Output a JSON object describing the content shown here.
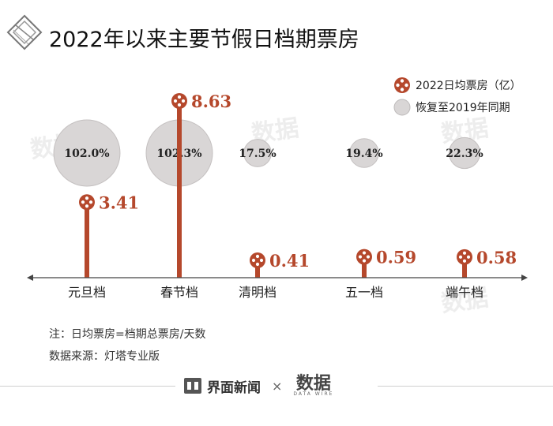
{
  "title": "2022年以来主要节假日档期票房",
  "legend": {
    "daily_label": "2022日均票房（亿）",
    "recovery_label": "恢复至2019年同期"
  },
  "colors": {
    "accent": "#b5482c",
    "bubble": "#d9d6d6",
    "axis": "#444444"
  },
  "chart_data": {
    "type": "scatter",
    "categories": [
      "元旦档",
      "春节档",
      "清明档",
      "五一档",
      "端午档"
    ],
    "series": [
      {
        "name": "2022日均票房（亿）",
        "values": [
          3.41,
          8.63,
          0.41,
          0.59,
          0.58
        ],
        "labels": [
          "3.41",
          "8.63",
          "0.41",
          "0.59",
          "0.58"
        ]
      },
      {
        "name": "恢复至2019年同期",
        "values": [
          102.0,
          102.3,
          17.5,
          19.4,
          22.3
        ],
        "labels": [
          "102.0%",
          "102.3%",
          "17.5%",
          "19.4%",
          "22.3%"
        ]
      }
    ]
  },
  "notes": {
    "note1": "注：日均票房=档期总票房/天数",
    "note2": "数据来源：灯塔专业版"
  },
  "footer": {
    "brand1": "界面新闻",
    "times": "×",
    "brand2": "数据",
    "brand2_sub": "DATA WIRE"
  }
}
